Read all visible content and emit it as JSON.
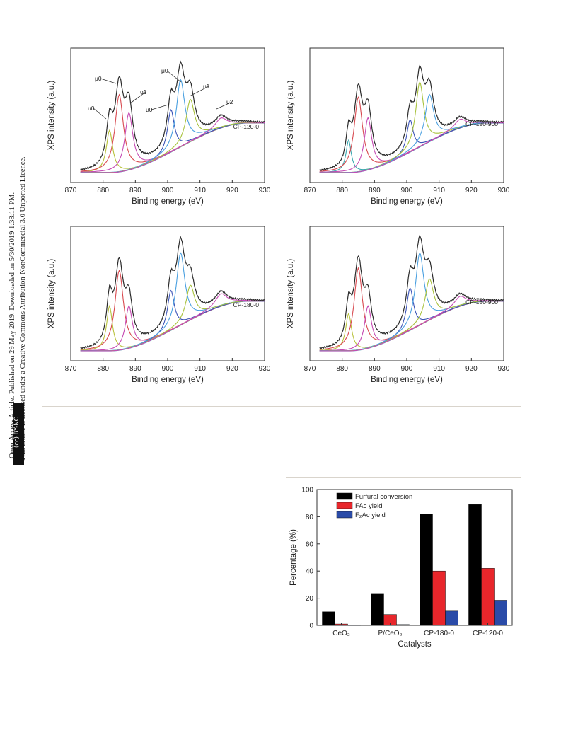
{
  "sidebar": {
    "line1": "Open Access Article. Published on 29 May 2019. Downloaded on 5/30/2019 1:38:11 PM.",
    "line2": "This article is licensed under a Creative Commons Attribution-NonCommercial 3.0 Unported Licence.",
    "cc_badge": "(cc) BY-NC"
  },
  "xps_panels": [
    {
      "label": "CP-120-0",
      "peak_labels": [
        "u0",
        "μ0",
        "υ1",
        "υ0",
        "μ0",
        "υ1",
        "υ2"
      ]
    },
    {
      "label": "CP-120-900",
      "peak_labels": []
    },
    {
      "label": "CP-180-0",
      "peak_labels": []
    },
    {
      "label": "CP-180-900",
      "peak_labels": []
    }
  ],
  "chart_data": [
    {
      "type": "line",
      "panel": "CP-120-0",
      "xlabel": "Binding energy (eV)",
      "ylabel": "XPS intensity (a.u.)",
      "xlim": [
        870,
        930
      ],
      "xticks": [
        870,
        880,
        890,
        900,
        910,
        920,
        930
      ],
      "series_colors": [
        "#2b2b2b",
        "#b8c23c",
        "#d84a50",
        "#c64bb4",
        "#3a52b6",
        "#4aa0e0",
        "#a8c23c",
        "#5b7bd0",
        "#3aa8b0"
      ]
    },
    {
      "type": "line",
      "panel": "CP-120-900",
      "xlabel": "Binding energy (eV)",
      "ylabel": "XPS intensity (a.u.)",
      "xlim": [
        870,
        930
      ],
      "xticks": [
        870,
        880,
        890,
        900,
        910,
        920,
        930
      ]
    },
    {
      "type": "line",
      "panel": "CP-180-0",
      "xlabel": "Binding energy (eV)",
      "ylabel": "XPS intensity (a.u.)",
      "xlim": [
        870,
        930
      ],
      "xticks": [
        870,
        880,
        890,
        900,
        910,
        920,
        930
      ]
    },
    {
      "type": "line",
      "panel": "CP-180-900",
      "xlabel": "Binding energy (eV)",
      "ylabel": "XPS intensity (a.u.)",
      "xlim": [
        870,
        930
      ],
      "xticks": [
        870,
        880,
        890,
        900,
        910,
        920,
        930
      ]
    },
    {
      "type": "bar",
      "xlabel": "Catalysts",
      "ylabel": "Percentage (%)",
      "ylim": [
        0,
        100
      ],
      "yticks": [
        0,
        20,
        40,
        60,
        80,
        100
      ],
      "categories": [
        "CeO₂",
        "P/CeO₂",
        "CP-180-0",
        "CP-120-0"
      ],
      "legend_position": "top-left",
      "series": [
        {
          "name": "Furfural conversion",
          "color": "#000000",
          "values": [
            10,
            23.5,
            82,
            89
          ]
        },
        {
          "name": "FAc yield",
          "color": "#e8262b",
          "values": [
            1,
            8,
            40,
            42
          ]
        },
        {
          "name": "F₂Ac yield",
          "color": "#2a4ba8",
          "values": [
            0,
            0.6,
            10.5,
            18.5
          ]
        }
      ]
    }
  ]
}
